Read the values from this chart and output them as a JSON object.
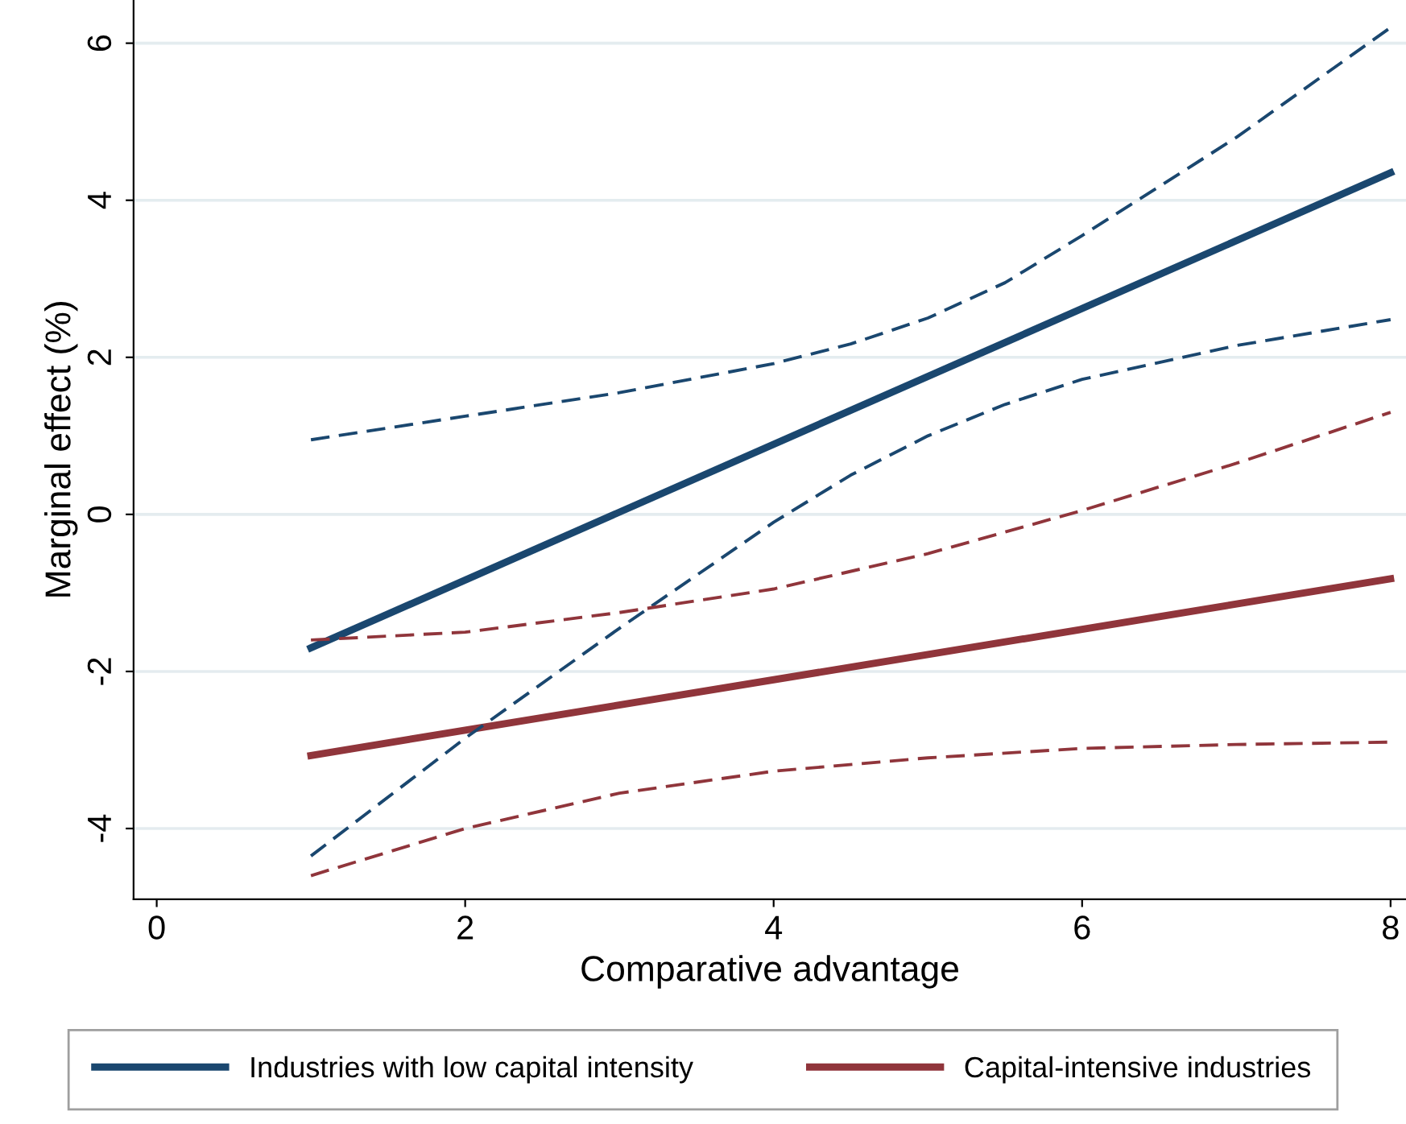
{
  "chart_data": {
    "type": "line",
    "xlabel": "Comparative advantage",
    "ylabel": "Marginal effect (%)",
    "xlim": [
      -0.15,
      8.1
    ],
    "ylim": [
      -4.9,
      6.55
    ],
    "xticks": [
      0,
      2,
      4,
      6,
      8
    ],
    "yticks": [
      -4,
      -2,
      0,
      2,
      4,
      6
    ],
    "grid": "y",
    "legend": "bottom",
    "series": [
      {
        "name": "Industries with low capital intensity",
        "color": "#1a476f",
        "x": [
          1,
          8
        ],
        "values": [
          -1.7,
          4.35
        ],
        "line_style": "solid"
      },
      {
        "name": "Capital-intensive industries",
        "color": "#90353b",
        "x": [
          1,
          8
        ],
        "values": [
          -3.07,
          -0.82
        ],
        "line_style": "solid"
      },
      {
        "color": "#1a476f",
        "x": [
          1,
          2,
          3,
          4,
          4.5,
          5,
          5.5,
          6,
          7,
          8
        ],
        "values": [
          0.95,
          1.25,
          1.55,
          1.92,
          2.17,
          2.5,
          2.95,
          3.55,
          4.8,
          6.2
        ],
        "line_style": "dashed"
      },
      {
        "color": "#1a476f",
        "x": [
          1,
          2,
          3,
          4,
          4.5,
          5,
          5.5,
          6,
          7,
          8
        ],
        "values": [
          -4.35,
          -2.85,
          -1.45,
          -0.1,
          0.5,
          1.0,
          1.4,
          1.72,
          2.15,
          2.48
        ],
        "line_style": "dashed"
      },
      {
        "color": "#90353b",
        "x": [
          1,
          2,
          3,
          4,
          5,
          6,
          7,
          8
        ],
        "values": [
          -1.6,
          -1.5,
          -1.25,
          -0.95,
          -0.5,
          0.05,
          0.65,
          1.3
        ],
        "line_style": "dashed"
      },
      {
        "color": "#90353b",
        "x": [
          1,
          2,
          3,
          4,
          5,
          6,
          7,
          8
        ],
        "values": [
          -4.6,
          -4.0,
          -3.55,
          -3.27,
          -3.1,
          -2.98,
          -2.93,
          -2.9
        ],
        "line_style": "dashed"
      }
    ]
  }
}
